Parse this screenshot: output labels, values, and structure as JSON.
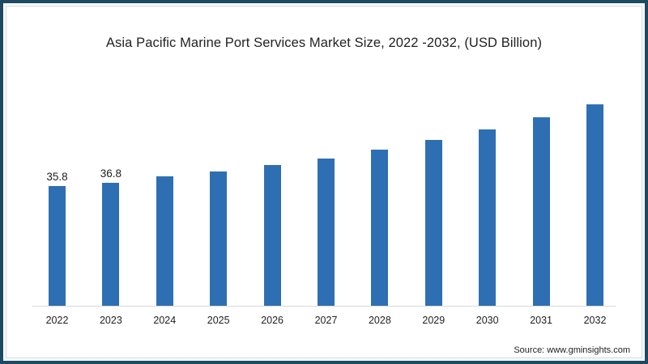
{
  "chart_data": {
    "type": "bar",
    "title": "Asia Pacific Marine Port Services Market Size, 2022 -2032, (USD Billion)",
    "categories": [
      "2022",
      "2023",
      "2024",
      "2025",
      "2026",
      "2027",
      "2028",
      "2029",
      "2030",
      "2031",
      "2032"
    ],
    "values": [
      35.8,
      36.8,
      38.7,
      40.2,
      42.1,
      44.1,
      46.7,
      49.6,
      52.8,
      56.4,
      60.3
    ],
    "data_labels": {
      "2022": "35.8",
      "2023": "36.8"
    },
    "xlabel": "",
    "ylabel": "",
    "ylim": [
      0,
      77
    ],
    "grid": false,
    "legend": null,
    "bar_color": "#2e6fb3",
    "source": "Source: www.gminsights.com"
  },
  "colors": {
    "frame": "#1d4a63",
    "bar": "#2e6fb3",
    "text": "#222222"
  }
}
